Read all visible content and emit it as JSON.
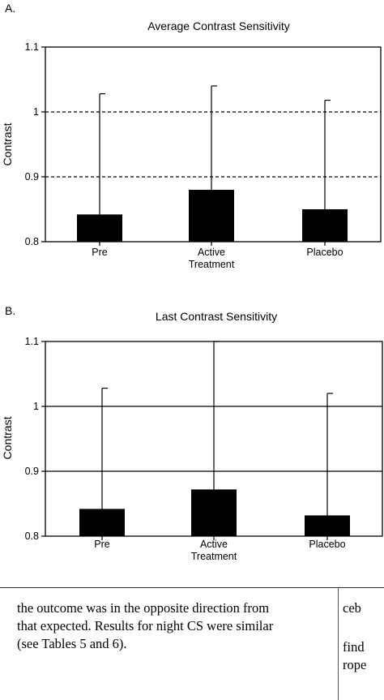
{
  "chart_data": [
    {
      "type": "bar",
      "panel_label": "A.",
      "title": "Average Contrast Sensitivity",
      "ylabel": "Contrast",
      "xlabel": "",
      "ylim": [
        0.8,
        1.1
      ],
      "yticks": [
        "0.8",
        "0.9",
        "1",
        "1.1"
      ],
      "categories": [
        "Pre",
        "Active Treatment",
        "Placebo"
      ],
      "category_lines": [
        [
          "Pre"
        ],
        [
          "Active",
          "Treatment"
        ],
        [
          "Placebo"
        ]
      ],
      "values": [
        0.842,
        0.88,
        0.85
      ],
      "error_upper": [
        1.028,
        1.04,
        1.018
      ],
      "reference_lines": [
        0.9,
        1.0
      ],
      "reference_style": "dashed",
      "bar_color": "#000000"
    },
    {
      "type": "bar",
      "panel_label": "B.",
      "title": "Last Contrast Sensitivity",
      "ylabel": "Contrast",
      "xlabel": "",
      "ylim": [
        0.8,
        1.1
      ],
      "yticks": [
        "0.8",
        "0.9",
        "1",
        "1.1"
      ],
      "categories": [
        "Pre",
        "Active Treatment",
        "Placebo"
      ],
      "category_lines": [
        [
          "Pre"
        ],
        [
          "Active",
          "Treatment"
        ],
        [
          "Placebo"
        ]
      ],
      "values": [
        0.842,
        0.872,
        0.832
      ],
      "error_upper": [
        1.028,
        1.1,
        1.02
      ],
      "reference_lines": [
        0.9,
        1.0
      ],
      "reference_style": "solid",
      "bar_color": "#000000"
    }
  ],
  "body_text": {
    "line1": "the outcome was in the opposite direction from",
    "line2": "that expected. Results for night CS were similar",
    "line3": "(see Tables 5 and 6)."
  },
  "right_column_fragment": {
    "line1": "ceb",
    "line2": "find",
    "line3": "rope"
  }
}
